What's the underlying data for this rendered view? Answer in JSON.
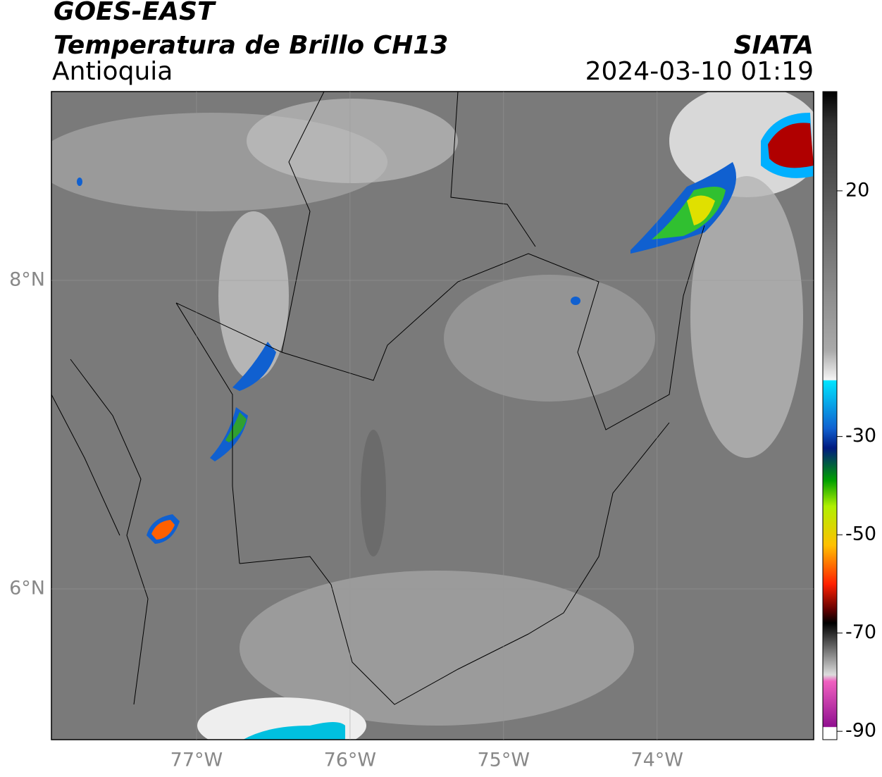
{
  "header": {
    "title": "GOES-EAST",
    "subtitle": "Temperatura de Brillo CH13",
    "region": "Antioquia",
    "source": "SIATA",
    "timestamp": "2024-03-10 01:19"
  },
  "map": {
    "lonlim": [
      -77.945,
      -72.98
    ],
    "latlim": [
      5.023,
      9.224
    ],
    "lon_ticks": [
      {
        "value": -77,
        "label": "77°W"
      },
      {
        "value": -76,
        "label": "76°W"
      },
      {
        "value": -75,
        "label": "75°W"
      },
      {
        "value": -74,
        "label": "74°W"
      }
    ],
    "lat_ticks": [
      {
        "value": 8,
        "label": "8°N"
      },
      {
        "value": 6,
        "label": "6°N"
      }
    ]
  },
  "colorbar": {
    "lim": [
      40.2,
      -91.7
    ],
    "ticks": [
      20,
      -30,
      -50,
      -70,
      -90
    ]
  }
}
